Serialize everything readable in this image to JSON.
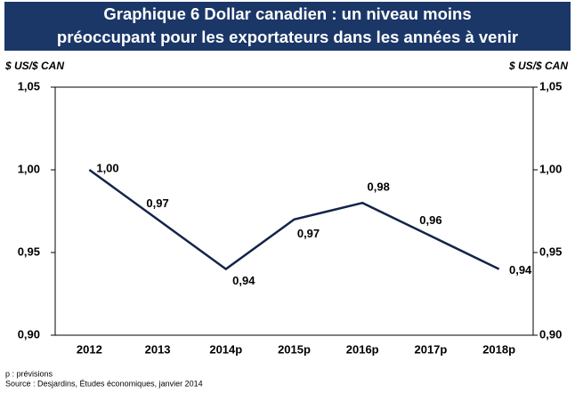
{
  "chart_data": {
    "type": "line",
    "title_lines": [
      "Graphique 6    Dollar canadien : un niveau moins",
      "préoccupant pour les exportateurs dans les années à venir"
    ],
    "y_label": "$ US/$ CAN",
    "y2_label": "$ US/$ CAN",
    "categories": [
      "2012",
      "2013",
      "2014p",
      "2015p",
      "2016p",
      "2017p",
      "2018p"
    ],
    "values": [
      1.0,
      0.97,
      0.94,
      0.97,
      0.98,
      0.96,
      0.94
    ],
    "value_labels": [
      "1,00",
      "0,97",
      "0,94",
      "0,97",
      "0,98",
      "0,96",
      "0,94"
    ],
    "color": "#14244a",
    "ylim": [
      0.9,
      1.05
    ],
    "yticks": [
      {
        "value": 0.9,
        "label": "0,90"
      },
      {
        "value": 0.95,
        "label": "0,95"
      },
      {
        "value": 1.0,
        "label": "1,00"
      },
      {
        "value": 1.05,
        "label": "1,05"
      }
    ],
    "y2lim": [
      0.9,
      1.05
    ],
    "y2ticks": [
      {
        "value": 0.9,
        "label": "0,90"
      },
      {
        "value": 0.95,
        "label": "0,95"
      },
      {
        "value": 1.0,
        "label": "1,00"
      },
      {
        "value": 1.05,
        "label": "1,05"
      }
    ],
    "notes": [
      "p : prévisions",
      "Source : Desjardins, Études économiques, janvier 2014"
    ]
  }
}
